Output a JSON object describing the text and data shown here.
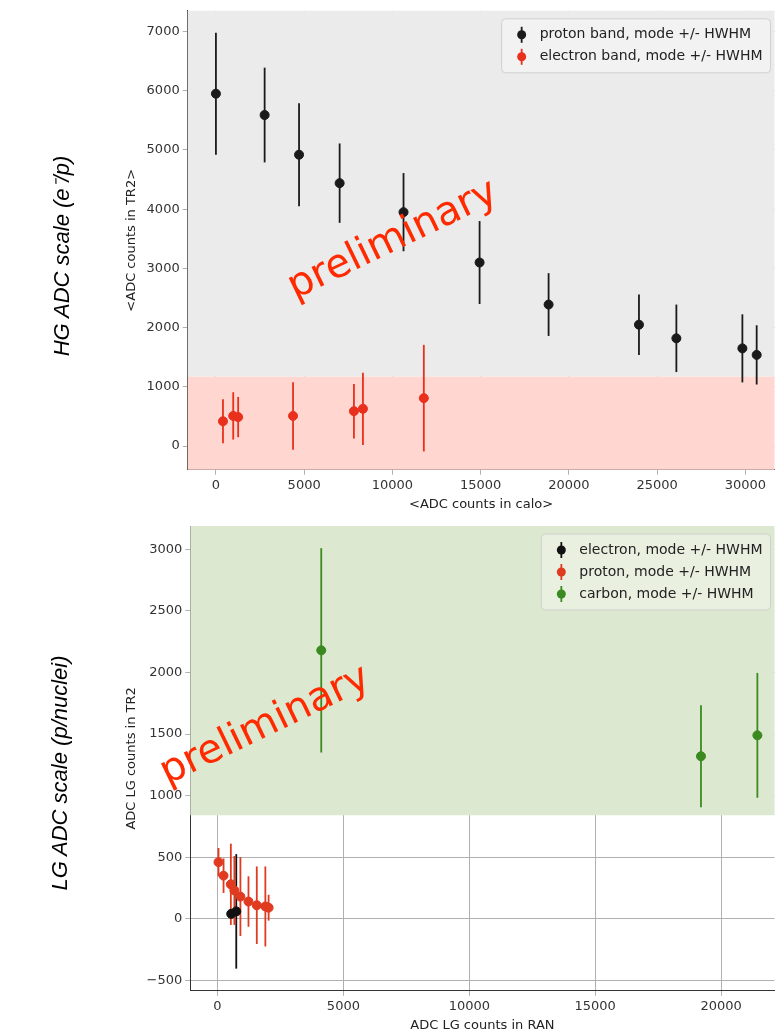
{
  "chart_data": [
    {
      "type": "scatter",
      "title": "HG ADC scale (e⁻/p)",
      "xlabel": "<ADC counts in calo>",
      "ylabel": "<ADC counts in TR2>",
      "annotations": [
        "preliminary"
      ],
      "series": [
        {
          "name": "proton band, mode +/- HWHM",
          "color": "#1a1a1a",
          "x": [
            0,
            2760,
            4710,
            7010,
            10630,
            14940,
            18850,
            23970,
            26090,
            29830,
            30640
          ],
          "values": [
            5950,
            5590,
            4920,
            4440,
            3950,
            3100,
            2390,
            2050,
            1820,
            1650,
            1540
          ],
          "errors": [
            1030,
            800,
            870,
            670,
            660,
            700,
            530,
            510,
            570,
            575,
            500
          ]
        },
        {
          "name": "electron band, mode +/- HWHM",
          "color": "#e8301c",
          "x": [
            400,
            980,
            1260,
            4370,
            7820,
            8330,
            11780
          ],
          "values": [
            420,
            510,
            490,
            510,
            590,
            630,
            810
          ],
          "errors": [
            370,
            400,
            340,
            570,
            460,
            610,
            900
          ]
        }
      ],
      "bands": [
        {
          "axis": "y",
          "from": 1170,
          "to": 7350,
          "color": "#ebebeb"
        },
        {
          "axis": "y",
          "from": -400,
          "to": 1170,
          "color": "#ffd6d0"
        }
      ],
      "xlim": [
        -1600,
        31650
      ],
      "ylim": [
        -400,
        7350
      ],
      "xticks": [
        0,
        5000,
        10000,
        15000,
        20000,
        25000,
        30000
      ],
      "yticks": [
        0,
        1000,
        2000,
        3000,
        4000,
        5000,
        6000,
        7000
      ],
      "grid": true,
      "legend": "top right",
      "marker": "circle"
    },
    {
      "type": "scatter",
      "title": "LG ADC scale (p/nuclei)",
      "xlabel": "ADC LG counts in RAN",
      "ylabel": "ADC LG counts in TR2",
      "annotations": [
        "preliminary"
      ],
      "series": [
        {
          "name": "electron, mode +/- HWHM",
          "color": "#111111",
          "x": [
            545,
            745
          ],
          "values": [
            40,
            60
          ],
          "errors": [
            null,
            465
          ]
        },
        {
          "name": "proton, mode +/- HWHM",
          "color": "#e03a20",
          "x": [
            40,
            240,
            530,
            670,
            910,
            1230,
            1560,
            1900,
            2030
          ],
          "values": [
            460,
            350,
            280,
            230,
            180,
            140,
            110,
            100,
            90
          ],
          "errors": [
            115,
            140,
            330,
            280,
            320,
            205,
            315,
            325,
            105
          ]
        },
        {
          "name": "carbon, mode +/- HWHM",
          "color": "#3a8a20",
          "x": [
            4120,
            19200,
            21440
          ],
          "values": [
            2180,
            1320,
            1490
          ],
          "errors": [
            830,
            415,
            507
          ]
        }
      ],
      "bands": [
        {
          "axis": "y",
          "from": 840,
          "to": 3190,
          "color": "#dde8d0"
        }
      ],
      "xlim": [
        -1080,
        22120
      ],
      "ylim": [
        -585,
        3190
      ],
      "xticks": [
        0,
        5000,
        10000,
        15000,
        20000
      ],
      "yticks": [
        {
          "value": -500,
          "label": "−500"
        },
        0,
        500,
        1000,
        1500,
        2000,
        2500,
        3000
      ],
      "grid": true,
      "legend": "top right",
      "marker": "circle"
    }
  ]
}
